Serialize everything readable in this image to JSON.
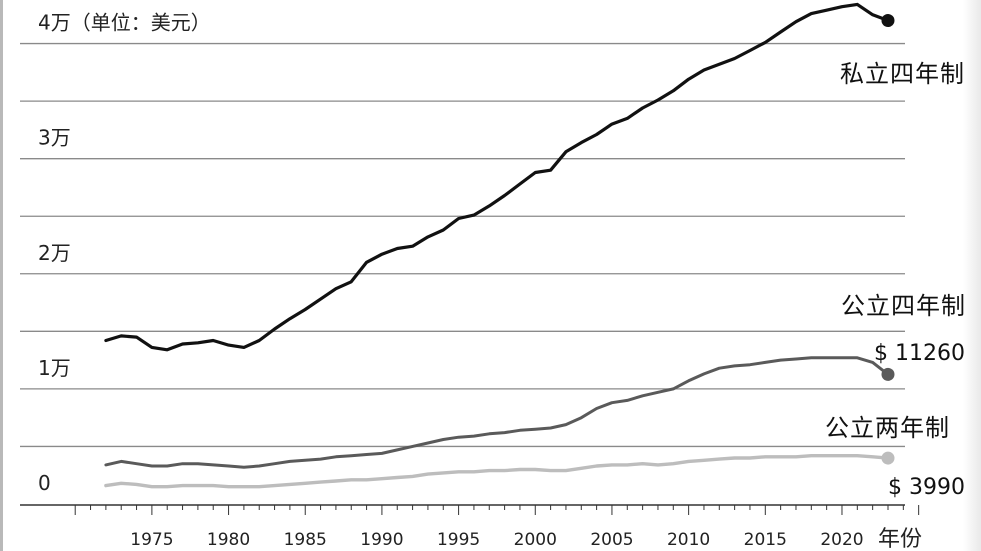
{
  "chart_data": {
    "type": "line",
    "title": "",
    "ylabel": "4万（单位：美元）",
    "xlabel": "年份",
    "x_ticks": [
      "1975",
      "1980",
      "1985",
      "1990",
      "1995",
      "2000",
      "2005",
      "2010",
      "2015",
      "2020"
    ],
    "y_ticks": [
      {
        "value": 0,
        "label": "0"
      },
      {
        "value": 10000,
        "label": "1万"
      },
      {
        "value": 20000,
        "label": "2万"
      },
      {
        "value": 30000,
        "label": "3万"
      },
      {
        "value": 40000,
        "label": "4万（单位：美元）"
      }
    ],
    "ylim": [
      0,
      45000
    ],
    "xlim": [
      1966.4,
      2029
    ],
    "grid": {
      "horizontal": true,
      "step": 5000
    },
    "series": [
      {
        "name": "私立四年制",
        "color": "#111111",
        "end_value": 42000,
        "end_label": "",
        "x": [
          1972,
          1973,
          1974,
          1975,
          1976,
          1977,
          1978,
          1979,
          1980,
          1981,
          1982,
          1983,
          1984,
          1985,
          1986,
          1987,
          1988,
          1989,
          1990,
          1991,
          1992,
          1993,
          1994,
          1995,
          1996,
          1997,
          1998,
          1999,
          2000,
          2001,
          2002,
          2003,
          2004,
          2005,
          2006,
          2007,
          2008,
          2009,
          2010,
          2011,
          2012,
          2013,
          2014,
          2015,
          2016,
          2017,
          2018,
          2019,
          2020,
          2021,
          2022,
          2023
        ],
        "y": [
          14200,
          14600,
          14500,
          13600,
          13400,
          13900,
          14000,
          14200,
          13800,
          13600,
          14200,
          15200,
          16100,
          16900,
          17800,
          18700,
          19300,
          21000,
          21700,
          22200,
          22400,
          23200,
          23800,
          24800,
          25100,
          25900,
          26800,
          27800,
          28800,
          29000,
          30600,
          31400,
          32100,
          33000,
          33500,
          34400,
          35100,
          35900,
          36900,
          37700,
          38200,
          38700,
          39400,
          40100,
          41000,
          41900,
          42600,
          42900,
          43200,
          43400,
          42500,
          42000
        ]
      },
      {
        "name": "公立四年制",
        "color": "#5a5a5a",
        "end_value": 11260,
        "end_label": "$ 11260",
        "x": [
          1972,
          1973,
          1974,
          1975,
          1976,
          1977,
          1978,
          1979,
          1980,
          1981,
          1982,
          1983,
          1984,
          1985,
          1986,
          1987,
          1988,
          1989,
          1990,
          1991,
          1992,
          1993,
          1994,
          1995,
          1996,
          1997,
          1998,
          1999,
          2000,
          2001,
          2002,
          2003,
          2004,
          2005,
          2006,
          2007,
          2008,
          2009,
          2010,
          2011,
          2012,
          2013,
          2014,
          2015,
          2016,
          2017,
          2018,
          2019,
          2020,
          2021,
          2022,
          2023
        ],
        "y": [
          3400,
          3700,
          3500,
          3300,
          3300,
          3500,
          3500,
          3400,
          3300,
          3200,
          3300,
          3500,
          3700,
          3800,
          3900,
          4100,
          4200,
          4300,
          4400,
          4700,
          5000,
          5300,
          5600,
          5800,
          5900,
          6100,
          6200,
          6400,
          6500,
          6600,
          6900,
          7500,
          8300,
          8800,
          9000,
          9400,
          9700,
          10000,
          10700,
          11300,
          11800,
          12000,
          12100,
          12300,
          12500,
          12600,
          12700,
          12700,
          12700,
          12700,
          12300,
          11260
        ]
      },
      {
        "name": "公立两年制",
        "color": "#bdbdbd",
        "end_value": 3990,
        "end_label": "$ 3990",
        "x": [
          1972,
          1973,
          1974,
          1975,
          1976,
          1977,
          1978,
          1979,
          1980,
          1981,
          1982,
          1983,
          1984,
          1985,
          1986,
          1987,
          1988,
          1989,
          1990,
          1991,
          1992,
          1993,
          1994,
          1995,
          1996,
          1997,
          1998,
          1999,
          2000,
          2001,
          2002,
          2003,
          2004,
          2005,
          2006,
          2007,
          2008,
          2009,
          2010,
          2011,
          2012,
          2013,
          2014,
          2015,
          2016,
          2017,
          2018,
          2019,
          2020,
          2021,
          2022,
          2023
        ],
        "y": [
          1600,
          1800,
          1700,
          1500,
          1500,
          1600,
          1600,
          1600,
          1500,
          1500,
          1500,
          1600,
          1700,
          1800,
          1900,
          2000,
          2100,
          2100,
          2200,
          2300,
          2400,
          2600,
          2700,
          2800,
          2800,
          2900,
          2900,
          3000,
          3000,
          2900,
          2900,
          3100,
          3300,
          3400,
          3400,
          3500,
          3400,
          3500,
          3700,
          3800,
          3900,
          4000,
          4000,
          4100,
          4100,
          4100,
          4200,
          4200,
          4200,
          4200,
          4100,
          3990
        ]
      }
    ]
  }
}
